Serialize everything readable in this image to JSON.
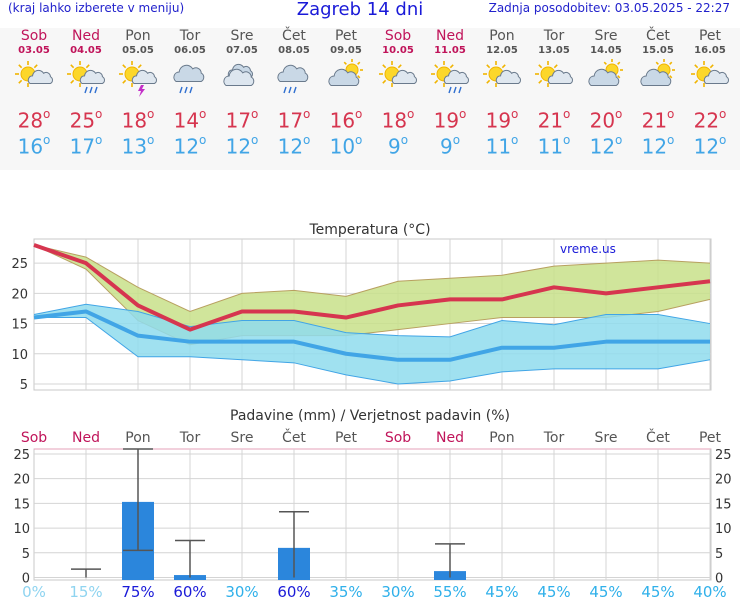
{
  "header": {
    "left_note": "(kraj lahko izberete v meniju)",
    "title": "Zagreb 14 dni",
    "updated": "Zadnja posodobitev: 03.05.2025 - 22:27"
  },
  "colors": {
    "weekend": "#c0145a",
    "weekday": "#555555",
    "tmax": "#d6354f",
    "tmin": "#41a5e6",
    "tmax_band": "#c8e08a",
    "tmin_band": "#8fdced",
    "precip_bar": "#2b86dc"
  },
  "days": [
    {
      "name": "Sob",
      "date": "03.05",
      "weekend": true,
      "icon": "sun-cloud-icon",
      "tmax": "28",
      "tmin": "16"
    },
    {
      "name": "Ned",
      "date": "04.05",
      "weekend": true,
      "icon": "sun-cloud-rain-icon",
      "tmax": "25",
      "tmin": "17"
    },
    {
      "name": "Pon",
      "date": "05.05",
      "weekend": false,
      "icon": "sun-cloud-storm-icon",
      "tmax": "18",
      "tmin": "13"
    },
    {
      "name": "Tor",
      "date": "06.05",
      "weekend": false,
      "icon": "cloud-rain-icon",
      "tmax": "14",
      "tmin": "12"
    },
    {
      "name": "Sre",
      "date": "07.05",
      "weekend": false,
      "icon": "cloud-icon",
      "tmax": "17",
      "tmin": "12"
    },
    {
      "name": "Čet",
      "date": "08.05",
      "weekend": false,
      "icon": "cloud-rain-icon",
      "tmax": "17",
      "tmin": "12"
    },
    {
      "name": "Pet",
      "date": "09.05",
      "weekend": false,
      "icon": "cloud-sun-icon",
      "tmax": "16",
      "tmin": "10"
    },
    {
      "name": "Sob",
      "date": "10.05",
      "weekend": true,
      "icon": "sun-cloud-icon",
      "tmax": "18",
      "tmin": "9"
    },
    {
      "name": "Ned",
      "date": "11.05",
      "weekend": true,
      "icon": "sun-cloud-rain-icon",
      "tmax": "19",
      "tmin": "9"
    },
    {
      "name": "Pon",
      "date": "12.05",
      "weekend": false,
      "icon": "sun-cloud-icon",
      "tmax": "19",
      "tmin": "11"
    },
    {
      "name": "Tor",
      "date": "13.05",
      "weekend": false,
      "icon": "sun-cloud-icon",
      "tmax": "21",
      "tmin": "11"
    },
    {
      "name": "Sre",
      "date": "14.05",
      "weekend": false,
      "icon": "cloud-sun-icon",
      "tmax": "20",
      "tmin": "12"
    },
    {
      "name": "Čet",
      "date": "15.05",
      "weekend": false,
      "icon": "cloud-sun-icon",
      "tmax": "21",
      "tmin": "12"
    },
    {
      "name": "Pet",
      "date": "16.05",
      "weekend": false,
      "icon": "sun-cloud-icon",
      "tmax": "22",
      "tmin": "12"
    }
  ],
  "chart_data": [
    {
      "type": "line",
      "title": "Temperatura (°C)",
      "watermark": "vreme.us",
      "ylim": [
        4,
        29
      ],
      "yticks": [
        5,
        10,
        15,
        20,
        25
      ],
      "grid": true,
      "series": [
        {
          "values": [
            28,
            25,
            18,
            14,
            17,
            17,
            16,
            18,
            19,
            19,
            21,
            20,
            21,
            22
          ]
        },
        {
          "values": [
            16,
            17,
            13,
            12,
            12,
            12,
            10,
            9,
            9,
            11,
            11,
            12,
            12,
            12
          ]
        }
      ],
      "bands": [
        {
          "lower": [
            28,
            24,
            15.5,
            11.5,
            13,
            13,
            13,
            14,
            15,
            16,
            16,
            16,
            17,
            19
          ],
          "upper": [
            28,
            26,
            21,
            17,
            20,
            20.5,
            19.5,
            22,
            22.5,
            23,
            24.5,
            25,
            25.5,
            25
          ]
        },
        {
          "lower": [
            16,
            16,
            9.5,
            9.5,
            9,
            8.5,
            6.5,
            5,
            5.5,
            7,
            7.5,
            7.5,
            7.5,
            9
          ],
          "upper": [
            16.5,
            18.2,
            17,
            14.5,
            15.5,
            15.5,
            13.5,
            13,
            12.8,
            15.5,
            14.8,
            16.5,
            16.5,
            15
          ]
        }
      ]
    },
    {
      "type": "bar",
      "title": "Padavine (mm) / Verjetnost padavin (%)",
      "categories": [
        "Sob",
        "Ned",
        "Pon",
        "Tor",
        "Sre",
        "Čet",
        "Pet",
        "Sob",
        "Ned",
        "Pon",
        "Tor",
        "Sre",
        "Čet",
        "Pet"
      ],
      "weekend": [
        true,
        true,
        false,
        false,
        false,
        false,
        false,
        true,
        true,
        false,
        false,
        false,
        false,
        false
      ],
      "values": [
        0,
        0,
        15.3,
        0.5,
        0,
        6,
        0,
        0,
        1.3,
        0,
        0,
        0,
        0,
        0
      ],
      "error_low": [
        0,
        0,
        5.5,
        0,
        0,
        0,
        0,
        0,
        0,
        0,
        0,
        0,
        0,
        0
      ],
      "error_high": [
        0,
        1.7,
        26,
        7.5,
        0,
        13.3,
        0,
        0,
        6.8,
        0,
        0,
        0,
        0,
        0
      ],
      "probability": [
        "0%",
        "15%",
        "75%",
        "60%",
        "30%",
        "60%",
        "35%",
        "30%",
        "55%",
        "45%",
        "45%",
        "45%",
        "45%",
        "40%"
      ],
      "probability_values": [
        0,
        15,
        75,
        60,
        30,
        60,
        35,
        30,
        55,
        45,
        45,
        45,
        45,
        40
      ],
      "ylim": [
        -0.5,
        26
      ],
      "yticks": [
        0,
        5,
        10,
        15,
        20,
        25
      ],
      "grid": true
    }
  ]
}
